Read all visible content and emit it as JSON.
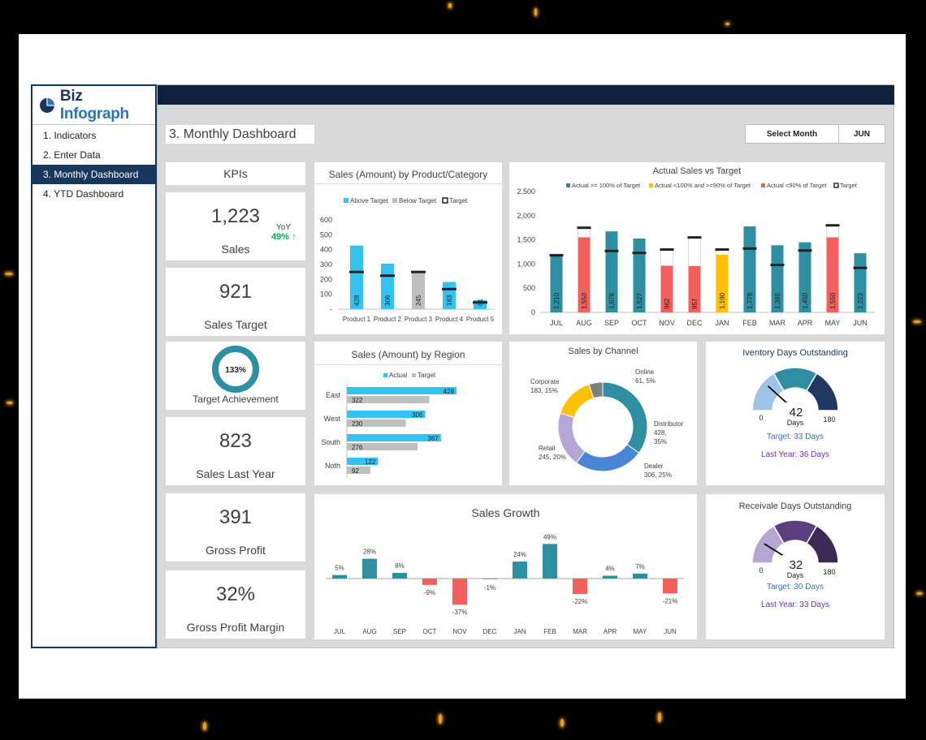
{
  "nav": {
    "logo_part1": "Biz ",
    "logo_part2": "Infograph",
    "items": [
      "1. Indicators",
      "2. Enter Data",
      "3. Monthly Dashboard",
      "4. YTD Dashboard"
    ]
  },
  "page_title": "3. Monthly Dashboard",
  "select_month": {
    "label": "Select Month",
    "value": "JUN"
  },
  "kpis": {
    "header": "KPIs",
    "sales": {
      "value": "1,223",
      "label": "Sales",
      "yoy_label": "YoY",
      "yoy_value": "49% ↑"
    },
    "sales_target": {
      "value": "921",
      "label": "Sales Target"
    },
    "target_achievement": {
      "value": "133%",
      "label": "Target Achievement",
      "fraction": 1.0
    },
    "sales_last_year": {
      "value": "823",
      "label": "Sales Last Year"
    },
    "gross_profit": {
      "value": "391",
      "label": "Gross Profit"
    },
    "gross_profit_margin": {
      "value": "32%",
      "label": "Gross Profit Margin"
    }
  },
  "colors": {
    "teal": "#2e8fa3",
    "blue": "#33c3f0",
    "red": "#f25f5c",
    "yellow": "#ffc000",
    "gray": "#bfbfbf",
    "navy": "#17375e",
    "green": "#00b050"
  },
  "chart_data": [
    {
      "type": "bar",
      "title": "Sales (Amount) by Product/Category",
      "legend": [
        "Above Target",
        "Below Target",
        "Target"
      ],
      "categories": [
        "Product 1",
        "Product 2",
        "Product 3",
        "Product 4",
        "Product 5"
      ],
      "values": [
        428,
        306,
        245,
        183,
        61
      ],
      "targets": [
        250,
        225,
        250,
        135,
        45
      ],
      "status": [
        "above",
        "above",
        "below",
        "above",
        "above"
      ],
      "yticks": [
        "-",
        "100",
        "200",
        "300",
        "400",
        "500",
        "600"
      ],
      "ylim": [
        0,
        600
      ]
    },
    {
      "type": "bar",
      "title": "Actual Sales vs Target",
      "legend": [
        "Actual >= 100% of Target",
        "Actual <100% and >=90% of Target",
        "Actual <90% of Target",
        "Target"
      ],
      "categories": [
        "JUL",
        "AUG",
        "SEP",
        "OCT",
        "NOV",
        "DEC",
        "JAN",
        "FEB",
        "MAR",
        "APR",
        "MAY",
        "JUN"
      ],
      "values": [
        1210,
        1550,
        1676,
        1527,
        962,
        957,
        1190,
        1778,
        1388,
        1450,
        1550,
        1223
      ],
      "value_labels": [
        "1,210",
        "1,550",
        "1,676",
        "1,527",
        "962",
        "957",
        "1,190",
        "1,778",
        "1,388",
        "1,450",
        "1,550",
        "1,223"
      ],
      "targets": [
        1180,
        1750,
        1270,
        1230,
        1300,
        1550,
        1300,
        1320,
        980,
        1280,
        1800,
        920
      ],
      "status": [
        "above",
        "below90",
        "above",
        "above",
        "below90",
        "below90",
        "between",
        "above",
        "above",
        "above",
        "below90",
        "above"
      ],
      "yticks": [
        "0",
        "500",
        "1,000",
        "1,500",
        "2,000",
        "2,500"
      ],
      "ylim": [
        0,
        2500
      ]
    },
    {
      "type": "bar",
      "title": "Sales (Amount) by Region",
      "legend": [
        "Actual",
        "Target"
      ],
      "categories": [
        "East",
        "West",
        "South",
        "Noth"
      ],
      "actual": [
        428,
        306,
        367,
        122
      ],
      "target": [
        322,
        230,
        276,
        92
      ]
    },
    {
      "type": "pie",
      "title": "Sales by Channel",
      "slices": [
        {
          "name": "Online",
          "value": 61,
          "pct": "5%",
          "label": "Online\n61, 5%"
        },
        {
          "name": "Distributor",
          "value": 428,
          "pct": "35%",
          "label": "Distributor\n428,\n35%"
        },
        {
          "name": "Dealer",
          "value": 306,
          "pct": "25%",
          "label": "Dealer\n306, 25%"
        },
        {
          "name": "Retail",
          "value": 245,
          "pct": "20%",
          "label": "Retail\n245, 20%"
        },
        {
          "name": "Corporate",
          "value": 183,
          "pct": "15%",
          "label": "Corporate\n183, 15%"
        }
      ]
    },
    {
      "type": "bar",
      "title": "Sales Growth",
      "categories": [
        "JUL",
        "AUG",
        "SEP",
        "OCT",
        "NOV",
        "DEC",
        "JAN",
        "FEB",
        "MAR",
        "APR",
        "MAY",
        "JUN"
      ],
      "values": [
        5,
        28,
        8,
        -9,
        -37,
        -1,
        24,
        49,
        -22,
        4,
        7,
        -21
      ],
      "value_labels": [
        "5%",
        "28%",
        "8%",
        "-9%",
        "-37%",
        "-1%",
        "24%",
        "49%",
        "-22%",
        "4%",
        "7%",
        "-21%"
      ]
    }
  ],
  "inventory_days": {
    "title": "Iventory Days Outstanding",
    "value": "42",
    "unit": "Days",
    "min": "0",
    "max": "180",
    "needle_value": 42,
    "target": "Target: 33 Days",
    "last_year": "Last Year: 36 Days"
  },
  "receivable_days": {
    "title": "Receivale Days Outstanding",
    "value": "32",
    "unit": "Days",
    "min": "0",
    "max": "180",
    "needle_value": 32,
    "target": "Target: 30 Days",
    "last_year": "Last Year: 33 Days"
  }
}
